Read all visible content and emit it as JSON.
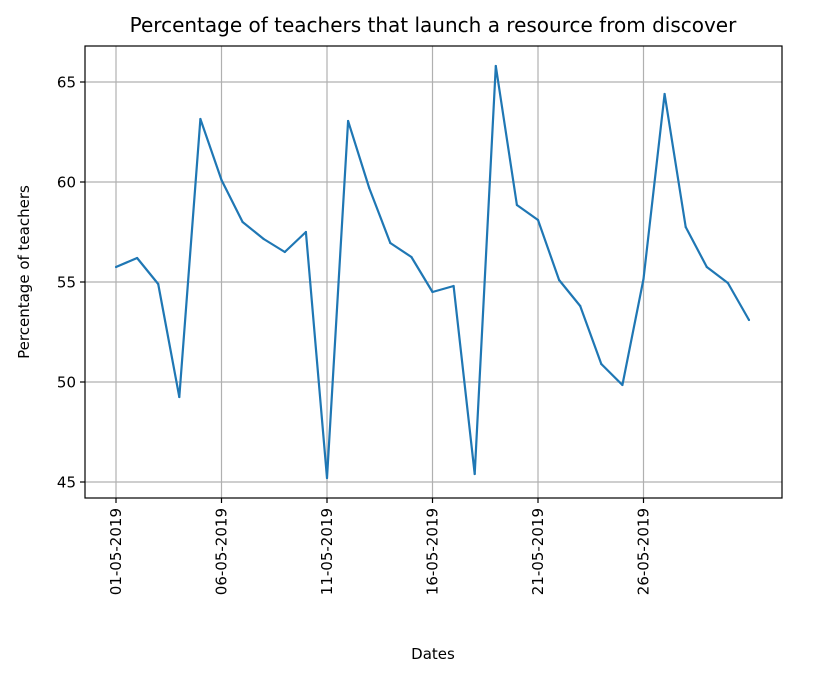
{
  "chart_data": {
    "type": "line",
    "title": "Percentage of teachers that launch a resource from discover",
    "xlabel": "Dates",
    "ylabel": "Percentage of teachers",
    "x": [
      "01-05-2019",
      "02-05-2019",
      "03-05-2019",
      "04-05-2019",
      "05-05-2019",
      "06-05-2019",
      "07-05-2019",
      "08-05-2019",
      "09-05-2019",
      "10-05-2019",
      "11-05-2019",
      "12-05-2019",
      "13-05-2019",
      "14-05-2019",
      "15-05-2019",
      "16-05-2019",
      "17-05-2019",
      "18-05-2019",
      "19-05-2019",
      "20-05-2019",
      "21-05-2019",
      "22-05-2019",
      "23-05-2019",
      "24-05-2019",
      "25-05-2019",
      "26-05-2019",
      "27-05-2019",
      "28-05-2019",
      "29-05-2019",
      "30-05-2019",
      "31-05-2019"
    ],
    "series": [
      {
        "values": [
          55.75,
          56.2,
          54.9,
          49.25,
          63.15,
          60.1,
          58.0,
          57.15,
          56.5,
          57.5,
          45.2,
          63.05,
          59.7,
          56.95,
          56.25,
          54.5,
          54.8,
          45.4,
          65.8,
          58.85,
          58.1,
          55.1,
          53.8,
          50.9,
          49.85,
          55.15,
          64.4,
          57.75,
          55.75,
          54.95,
          53.1
        ]
      }
    ],
    "xticks": [
      "01-05-2019",
      "06-05-2019",
      "11-05-2019",
      "16-05-2019",
      "21-05-2019",
      "26-05-2019"
    ],
    "yticks": [
      45,
      50,
      55,
      60,
      65
    ],
    "ylim": [
      44.2,
      66.8
    ],
    "grid": true,
    "line_color": "#1f77b4"
  }
}
